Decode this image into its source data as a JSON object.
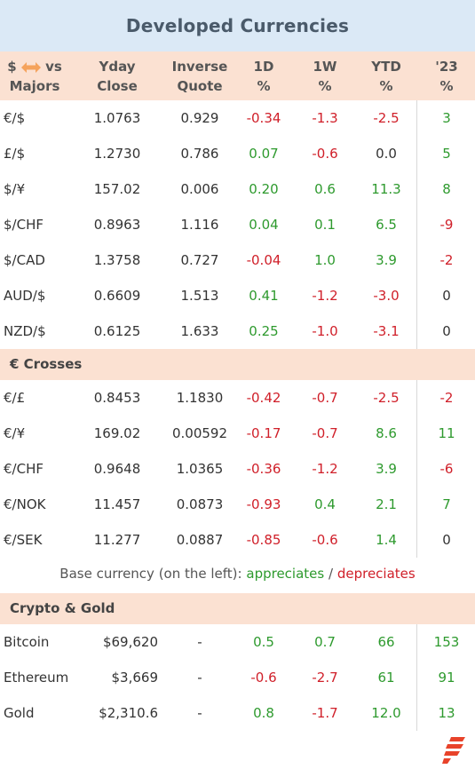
{
  "title": "Developed Currencies",
  "header": {
    "c0_a": "$",
    "c0_b": "vs",
    "c0_c": "Majors",
    "c1_a": "Yday",
    "c1_b": "Close",
    "c2_a": "Inverse",
    "c2_b": "Quote",
    "c3_a": "1D",
    "c3_b": "%",
    "c4_a": "1W",
    "c4_b": "%",
    "c5_a": "YTD",
    "c5_b": "%",
    "c6_a": "'23",
    "c6_b": "%"
  },
  "majors": [
    {
      "pair": "€/$",
      "close": "1.0763",
      "inverse": "0.929",
      "d1": "-0.34",
      "w1": "-1.3",
      "ytd": "-2.5",
      "y23": "3"
    },
    {
      "pair": "£/$",
      "close": "1.2730",
      "inverse": "0.786",
      "d1": "0.07",
      "w1": "-0.6",
      "ytd": "0.0",
      "y23": "5"
    },
    {
      "pair": "$/¥",
      "close": "157.02",
      "inverse": "0.006",
      "d1": "0.20",
      "w1": "0.6",
      "ytd": "11.3",
      "y23": "8"
    },
    {
      "pair": "$/CHF",
      "close": "0.8963",
      "inverse": "1.116",
      "d1": "0.04",
      "w1": "0.1",
      "ytd": "6.5",
      "y23": "-9"
    },
    {
      "pair": "$/CAD",
      "close": "1.3758",
      "inverse": "0.727",
      "d1": "-0.04",
      "w1": "1.0",
      "ytd": "3.9",
      "y23": "-2"
    },
    {
      "pair": "AUD/$",
      "close": "0.6609",
      "inverse": "1.513",
      "d1": "0.41",
      "w1": "-1.2",
      "ytd": "-3.0",
      "y23": "0"
    },
    {
      "pair": "NZD/$",
      "close": "0.6125",
      "inverse": "1.633",
      "d1": "0.25",
      "w1": "-1.0",
      "ytd": "-3.1",
      "y23": "0"
    }
  ],
  "crosses_label": "€ Crosses",
  "crosses": [
    {
      "pair": "€/£",
      "close": "0.8453",
      "inverse": "1.1830",
      "d1": "-0.42",
      "w1": "-0.7",
      "ytd": "-2.5",
      "y23": "-2"
    },
    {
      "pair": "€/¥",
      "close": "169.02",
      "inverse": "0.00592",
      "d1": "-0.17",
      "w1": "-0.7",
      "ytd": "8.6",
      "y23": "11"
    },
    {
      "pair": "€/CHF",
      "close": "0.9648",
      "inverse": "1.0365",
      "d1": "-0.36",
      "w1": "-1.2",
      "ytd": "3.9",
      "y23": "-6"
    },
    {
      "pair": "€/NOK",
      "close": "11.457",
      "inverse": "0.0873",
      "d1": "-0.93",
      "w1": "0.4",
      "ytd": "2.1",
      "y23": "7"
    },
    {
      "pair": "€/SEK",
      "close": "11.277",
      "inverse": "0.0887",
      "d1": "-0.85",
      "w1": "-0.6",
      "ytd": "1.4",
      "y23": "0"
    }
  ],
  "legend": {
    "prefix": "Base currency (on the left):",
    "appreciates": "appreciates",
    "sep": "/",
    "depreciates": "depreciates"
  },
  "crypto_label": "Crypto & Gold",
  "crypto": [
    {
      "pair": "Bitcoin",
      "close": "$69,620",
      "inverse": "-",
      "d1": "0.5",
      "w1": "0.7",
      "ytd": "66",
      "y23": "153"
    },
    {
      "pair": "Ethereum",
      "close": "$3,669",
      "inverse": "-",
      "d1": "-0.6",
      "w1": "-2.7",
      "ytd": "61",
      "y23": "91"
    },
    {
      "pair": "Gold",
      "close": "$2,310.6",
      "inverse": "-",
      "d1": "0.8",
      "w1": "-1.7",
      "ytd": "12.0",
      "y23": "13"
    }
  ],
  "colors": {
    "positive": "#2e9a2e",
    "negative": "#d0202a",
    "header_bg": "#fbe1d2",
    "title_bg": "#dbe9f6",
    "arrow": "#f5a35c",
    "logo": "#e8432a"
  }
}
